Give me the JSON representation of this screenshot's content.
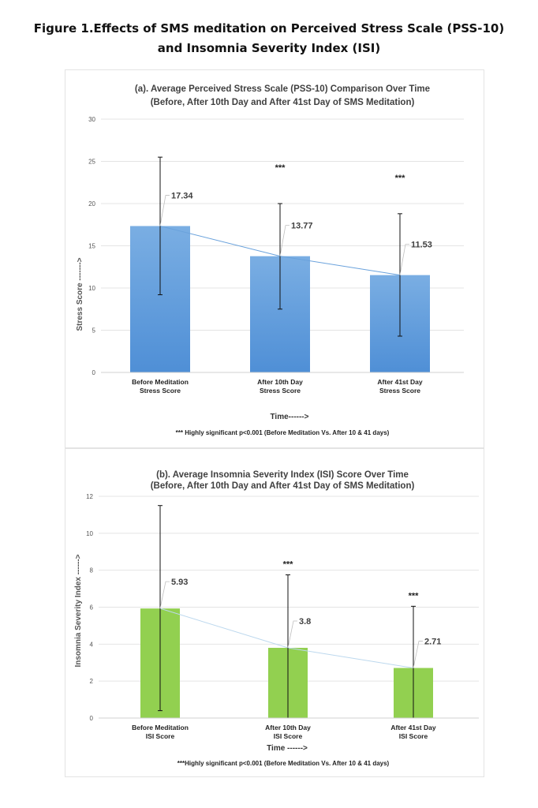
{
  "figure": {
    "title_line1": "Figure 1.Effects of SMS meditation on Perceived Stress Scale (PSS-10)",
    "title_line2": "and Insomnia Severity Index (ISI)"
  },
  "colors": {
    "bar_a": "#4f8fd6",
    "bar_a_light": "#7aaee3",
    "bar_b": "#92d050",
    "trend_a": "#6aa2dc",
    "trend_b": "#bcd8ee",
    "grid": "#e4e4e4"
  },
  "chart_data": [
    {
      "type": "bar",
      "title_line1": "(a). Average Perceived Stress Scale (PSS-10) Comparison Over Time",
      "title_line2": "(Before, After 10th Day and After 41st Day of SMS Meditation)",
      "categories": [
        [
          "Before Meditation",
          "Stress Score"
        ],
        [
          "After 10th Day",
          "Stress Score"
        ],
        [
          "After 41st Day",
          "Stress Score"
        ]
      ],
      "values": [
        17.34,
        13.77,
        11.53
      ],
      "value_labels": [
        "17.34",
        "13.77",
        "11.53"
      ],
      "error_high": [
        25.5,
        20.0,
        18.8
      ],
      "error_low": [
        9.2,
        7.5,
        4.3
      ],
      "significance": [
        "",
        "***",
        "***"
      ],
      "ylim": [
        0,
        30
      ],
      "yticks": [
        0,
        5,
        10,
        15,
        20,
        25,
        30
      ],
      "xlabel": "Time------>",
      "ylabel": "Stress Score ------->",
      "trendline": "linear",
      "footnote": "*** Highly significant p<0.001 (Before Meditation Vs. After 10 & 41 days)"
    },
    {
      "type": "bar",
      "title_line1": "(b). Average Insomnia Severity Index (ISI) Score Over Time",
      "title_line2": "(Before, After 10th Day and After 41st Day of  SMS Meditation)",
      "categories": [
        [
          "Before Meditation",
          "ISI Score"
        ],
        [
          "After 10th Day",
          "ISI Score"
        ],
        [
          "After 41st Day",
          "ISI Score"
        ]
      ],
      "values": [
        5.93,
        3.8,
        2.71
      ],
      "value_labels": [
        "5.93",
        "3.8",
        "2.71"
      ],
      "error_high": [
        11.5,
        7.75,
        6.05
      ],
      "error_low": [
        0.4,
        0,
        0
      ],
      "significance": [
        "",
        "***",
        "***"
      ],
      "ylim": [
        0,
        12
      ],
      "yticks": [
        0,
        2,
        4,
        6,
        8,
        10,
        12
      ],
      "xlabel": "Time ------>",
      "ylabel": "Insomnia Severity Index ------>",
      "trendline": "linear",
      "footnote": "***Highly significant p<0.001 (Before Meditation Vs. After 10 & 41 days)"
    }
  ]
}
